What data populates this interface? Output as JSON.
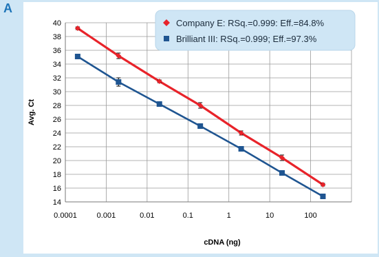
{
  "panel_label": "A",
  "chart_data": {
    "type": "line",
    "xscale": "log",
    "xlabel": "cDNA (ng)",
    "ylabel": "Avg. Ct",
    "xlim": [
      0.0001,
      1000
    ],
    "ylim": [
      14,
      40
    ],
    "x_ticks": [
      0.0001,
      0.001,
      0.01,
      0.1,
      1,
      10,
      100
    ],
    "x_tick_labels": [
      "0.0001",
      "0.001",
      "0.01",
      "0.1",
      "1",
      "10",
      "100"
    ],
    "y_ticks": [
      14,
      16,
      18,
      20,
      22,
      24,
      26,
      28,
      30,
      32,
      34,
      36,
      38,
      40
    ],
    "grid": "both",
    "legend_position": "top-right",
    "series": [
      {
        "name": "Company E: RSq.=0.999: Eff.=84.8%",
        "color": "#e8232a",
        "marker": "diamond",
        "x": [
          0.0002,
          0.002,
          0.02,
          0.2,
          2,
          20,
          200
        ],
        "y": [
          39.2,
          35.2,
          31.5,
          28.0,
          24.0,
          20.4,
          16.5
        ],
        "error": [
          0.2,
          0.4,
          0.2,
          0.4,
          0.3,
          0.4,
          0.2
        ]
      },
      {
        "name": "Brilliant III: RSq.=0.999; Eff.=97.3%",
        "color": "#1f5591",
        "marker": "square",
        "x": [
          0.0002,
          0.002,
          0.02,
          0.2,
          2,
          20,
          200
        ],
        "y": [
          35.1,
          31.4,
          28.2,
          25.0,
          21.7,
          18.2,
          14.8
        ],
        "error": [
          0.2,
          0.6,
          0.2,
          0.2,
          0.2,
          0.2,
          0.2
        ]
      }
    ]
  }
}
